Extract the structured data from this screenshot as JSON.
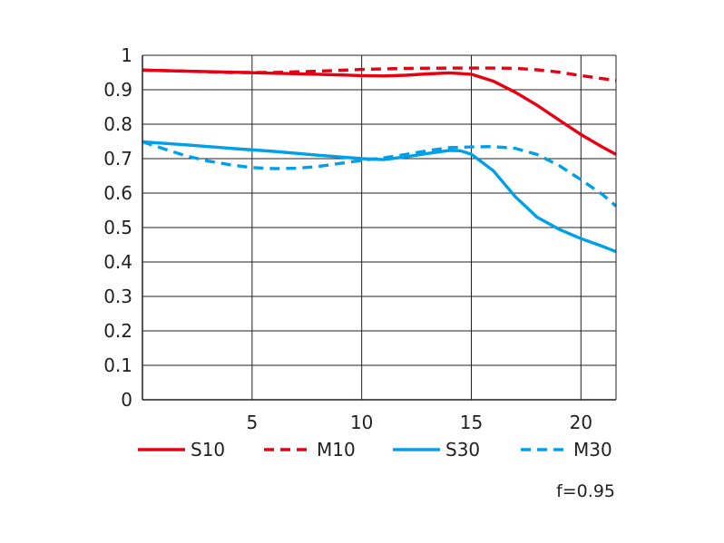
{
  "chart_data": {
    "type": "line",
    "title": "",
    "xlabel": "",
    "ylabel": "",
    "xlim": [
      0,
      21.6
    ],
    "ylim": [
      0,
      1
    ],
    "grid": true,
    "legend_position": "bottom",
    "x_ticks": [
      5,
      10,
      15,
      20
    ],
    "x_tick_labels": [
      "5",
      "10",
      "15",
      "20"
    ],
    "y_ticks": [
      0,
      0.1,
      0.2,
      0.3,
      0.4,
      0.5,
      0.6,
      0.7,
      0.8,
      0.9,
      1
    ],
    "y_tick_labels": [
      "0",
      "0.1",
      "0.2",
      "0.3",
      "0.4",
      "0.5",
      "0.6",
      "0.7",
      "0.8",
      "0.9",
      "1"
    ],
    "series": [
      {
        "name": "S10",
        "color": "#e60012",
        "dash": "solid",
        "x": [
          0,
          2,
          4,
          6,
          8,
          10,
          11,
          12,
          13,
          14,
          15,
          16,
          17,
          18,
          19,
          20,
          21,
          21.6
        ],
        "y": [
          0.957,
          0.954,
          0.951,
          0.948,
          0.945,
          0.941,
          0.94,
          0.942,
          0.946,
          0.949,
          0.945,
          0.925,
          0.893,
          0.855,
          0.812,
          0.77,
          0.733,
          0.712
        ]
      },
      {
        "name": "M10",
        "color": "#e60012",
        "dash": "dashed",
        "x": [
          0,
          2,
          4,
          6,
          8,
          10,
          12,
          14,
          16,
          17,
          18,
          19,
          20,
          21,
          21.6
        ],
        "y": [
          0.957,
          0.954,
          0.95,
          0.95,
          0.954,
          0.959,
          0.962,
          0.963,
          0.963,
          0.962,
          0.958,
          0.951,
          0.941,
          0.932,
          0.927
        ]
      },
      {
        "name": "S30",
        "color": "#00a0e9",
        "dash": "solid",
        "x": [
          0,
          2,
          4,
          6,
          8,
          10,
          11,
          12,
          13,
          14,
          14.5,
          15,
          16,
          17,
          18,
          19,
          20,
          21,
          21.6
        ],
        "y": [
          0.749,
          0.74,
          0.73,
          0.721,
          0.71,
          0.7,
          0.697,
          0.705,
          0.715,
          0.724,
          0.723,
          0.713,
          0.665,
          0.59,
          0.53,
          0.495,
          0.468,
          0.445,
          0.43
        ]
      },
      {
        "name": "M30",
        "color": "#00a0e9",
        "dash": "dashed",
        "x": [
          0,
          1,
          2,
          3,
          4,
          5,
          6,
          7,
          8,
          9,
          10,
          11,
          12,
          13,
          14,
          15,
          16,
          17,
          18,
          19,
          20,
          21,
          21.6
        ],
        "y": [
          0.749,
          0.728,
          0.708,
          0.693,
          0.682,
          0.674,
          0.671,
          0.672,
          0.677,
          0.686,
          0.695,
          0.702,
          0.712,
          0.723,
          0.732,
          0.734,
          0.735,
          0.73,
          0.712,
          0.68,
          0.639,
          0.595,
          0.562
        ]
      }
    ],
    "annotation": "f=0.95"
  }
}
